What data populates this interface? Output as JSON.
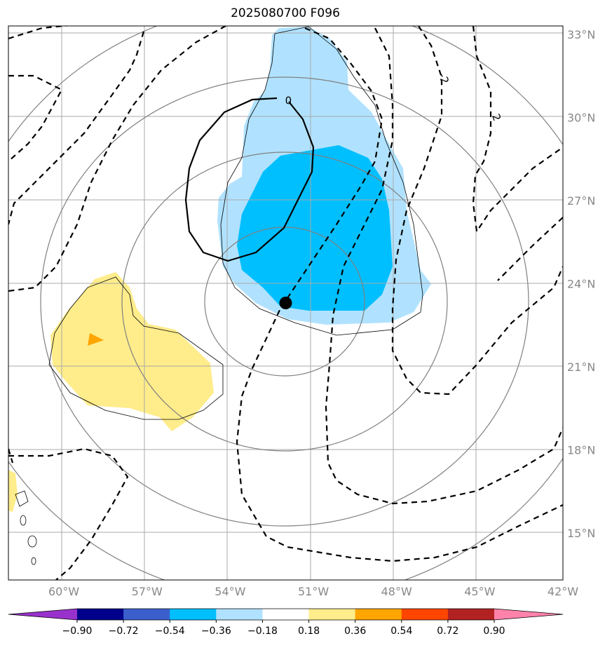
{
  "title": "2025080700 F096",
  "map": {
    "lat_ticks": [
      {
        "value": 33,
        "label": "33°N"
      },
      {
        "value": 30,
        "label": "30°N"
      },
      {
        "value": 27,
        "label": "27°N"
      },
      {
        "value": 24,
        "label": "24°N"
      },
      {
        "value": 21,
        "label": "21°N"
      },
      {
        "value": 18,
        "label": "18°N"
      },
      {
        "value": 15,
        "label": "15°N"
      }
    ],
    "lon_ticks": [
      {
        "value": -60,
        "label": "60°W"
      },
      {
        "value": -57,
        "label": "57°W"
      },
      {
        "value": -54,
        "label": "54°W"
      },
      {
        "value": -51,
        "label": "51°W"
      },
      {
        "value": -48,
        "label": "48°W"
      },
      {
        "value": -45,
        "label": "45°W"
      },
      {
        "value": -42,
        "label": "42°W"
      }
    ],
    "extent": {
      "lon_min": -62.0,
      "lon_max": -42.0,
      "lat_min": 13.3,
      "lat_max": 33.3
    },
    "storm_center": {
      "lon": -52.0,
      "lat": 23.3
    },
    "contour_labels": [
      {
        "text": "0",
        "lon": -51.9,
        "lat": 30.6,
        "rotate": 0
      },
      {
        "text": "-2",
        "lon": -46.3,
        "lat": 31.4,
        "rotate": 70
      },
      {
        "text": "2",
        "lon": -44.4,
        "lat": 30.0,
        "rotate": 70
      }
    ],
    "colors": {
      "grid": "#aaaaaa",
      "circles": "#808080",
      "contour": "#000000",
      "storm_marker": "#000000"
    }
  },
  "colorbar": {
    "levels": [
      "−0.90",
      "−0.72",
      "−0.54",
      "−0.36",
      "−0.18",
      "0.18",
      "0.36",
      "0.54",
      "0.72",
      "0.90"
    ],
    "colors": [
      "#9932cc",
      "#00008b",
      "#3a5fcd",
      "#00bfff",
      "#b0e2ff",
      "#ffffff",
      "#ffec8b",
      "#ffa500",
      "#ff4500",
      "#b22222",
      "#ff82ab"
    ]
  }
}
